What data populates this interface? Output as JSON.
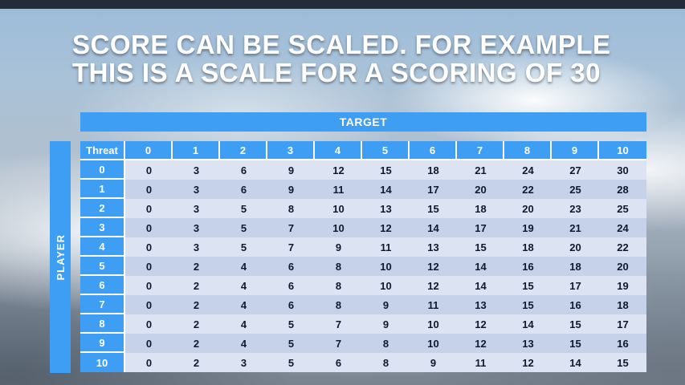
{
  "title": {
    "line1": "SCORE CAN BE SCALED. FOR EXAMPLE",
    "line2": "THIS IS A SCALE FOR A SCORING OF 30"
  },
  "table": {
    "target_label": "TARGET",
    "player_label": "PLAYER",
    "corner_label": "Threat",
    "column_headers": [
      "0",
      "1",
      "2",
      "3",
      "4",
      "5",
      "6",
      "7",
      "8",
      "9",
      "10"
    ],
    "rows": [
      {
        "label": "0",
        "values": [
          0,
          3,
          6,
          9,
          12,
          15,
          18,
          21,
          24,
          27,
          30
        ]
      },
      {
        "label": "1",
        "values": [
          0,
          3,
          6,
          9,
          11,
          14,
          17,
          20,
          22,
          25,
          28
        ]
      },
      {
        "label": "2",
        "values": [
          0,
          3,
          5,
          8,
          10,
          13,
          15,
          18,
          20,
          23,
          25
        ]
      },
      {
        "label": "3",
        "values": [
          0,
          3,
          5,
          7,
          10,
          12,
          14,
          17,
          19,
          21,
          24
        ]
      },
      {
        "label": "4",
        "values": [
          0,
          3,
          5,
          7,
          9,
          11,
          13,
          15,
          18,
          20,
          22
        ]
      },
      {
        "label": "5",
        "values": [
          0,
          2,
          4,
          6,
          8,
          10,
          12,
          14,
          16,
          18,
          20
        ]
      },
      {
        "label": "6",
        "values": [
          0,
          2,
          4,
          6,
          8,
          10,
          12,
          14,
          15,
          17,
          19
        ]
      },
      {
        "label": "7",
        "values": [
          0,
          2,
          4,
          6,
          8,
          9,
          11,
          13,
          15,
          16,
          18
        ]
      },
      {
        "label": "8",
        "values": [
          0,
          2,
          4,
          5,
          7,
          9,
          10,
          12,
          14,
          15,
          17
        ]
      },
      {
        "label": "9",
        "values": [
          0,
          2,
          4,
          5,
          7,
          8,
          10,
          12,
          13,
          15,
          16
        ]
      },
      {
        "label": "10",
        "values": [
          0,
          2,
          3,
          5,
          6,
          8,
          9,
          11,
          12,
          14,
          15
        ]
      }
    ]
  },
  "colors": {
    "accent_blue": "#3E9EF4",
    "row_light": "#DCE3F3",
    "row_dark": "#C6D1EA",
    "cell_text": "#0E1A2B",
    "title_text": "#FFFFFF",
    "top_bar": "#232C39"
  }
}
